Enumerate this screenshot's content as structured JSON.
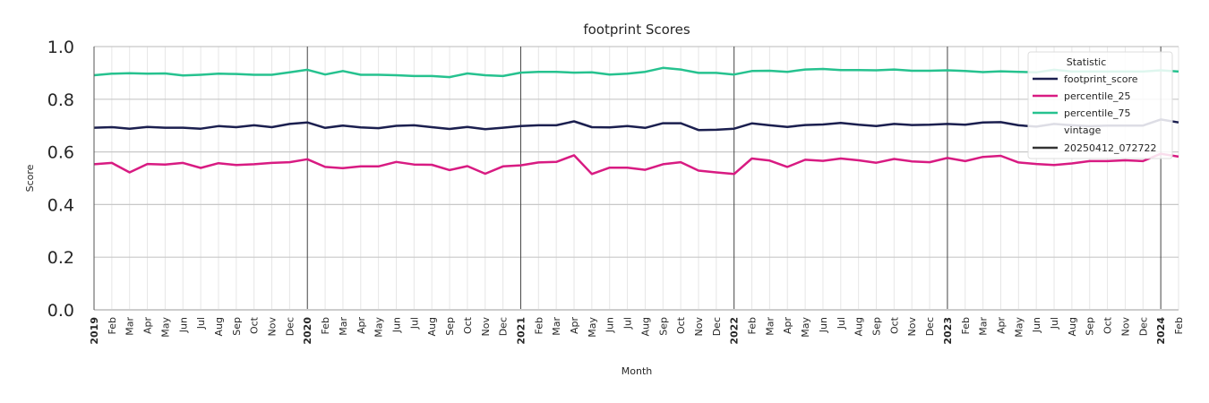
{
  "chart_data": {
    "type": "line",
    "title": "footprint Scores",
    "xlabel": "Month",
    "ylabel": "Score",
    "ylim": [
      0.0,
      1.0
    ],
    "yticks": [
      "0.0",
      "0.2",
      "0.4",
      "0.6",
      "0.8",
      "1.0"
    ],
    "x": [
      "2019",
      "Feb",
      "Mar",
      "Apr",
      "May",
      "Jun",
      "Jul",
      "Aug",
      "Sep",
      "Oct",
      "Nov",
      "Dec",
      "2020",
      "Feb",
      "Mar",
      "Apr",
      "May",
      "Jun",
      "Jul",
      "Aug",
      "Sep",
      "Oct",
      "Nov",
      "Dec",
      "2021",
      "Feb",
      "Mar",
      "Apr",
      "May",
      "Jun",
      "Jul",
      "Aug",
      "Sep",
      "Oct",
      "Nov",
      "Dec",
      "2022",
      "Feb",
      "Mar",
      "Apr",
      "May",
      "Jun",
      "Jul",
      "Aug",
      "Sep",
      "Oct",
      "Nov",
      "Dec",
      "2023",
      "Feb",
      "Mar",
      "Apr",
      "May",
      "Jun",
      "Jul",
      "Aug",
      "Sep",
      "Oct",
      "Nov",
      "Dec",
      "2024",
      "Feb"
    ],
    "year_ticks": [
      "2019",
      "2020",
      "2021",
      "2022",
      "2023",
      "2024"
    ],
    "grid": true,
    "legend_position": "top-right",
    "legend": {
      "title": "Statistic",
      "vintage_title": "vintage",
      "vintage_entry": "20250412_072722"
    },
    "series": [
      {
        "name": "footprint_score",
        "color": "#1b1f4f",
        "values": [
          0.692,
          0.694,
          0.688,
          0.695,
          0.692,
          0.692,
          0.688,
          0.698,
          0.694,
          0.701,
          0.694,
          0.706,
          0.712,
          0.691,
          0.7,
          0.693,
          0.69,
          0.699,
          0.701,
          0.694,
          0.687,
          0.695,
          0.686,
          0.692,
          0.698,
          0.701,
          0.701,
          0.716,
          0.694,
          0.693,
          0.698,
          0.691,
          0.709,
          0.709,
          0.683,
          0.684,
          0.688,
          0.708,
          0.701,
          0.695,
          0.702,
          0.704,
          0.71,
          0.703,
          0.698,
          0.706,
          0.702,
          0.703,
          0.706,
          0.703,
          0.712,
          0.713,
          0.701,
          0.696,
          0.706,
          0.701,
          0.698,
          0.7,
          0.7,
          0.7,
          0.723,
          0.712
        ]
      },
      {
        "name": "percentile_25",
        "color": "#d81b82",
        "values": [
          0.553,
          0.558,
          0.522,
          0.554,
          0.552,
          0.558,
          0.539,
          0.557,
          0.55,
          0.553,
          0.558,
          0.561,
          0.572,
          0.543,
          0.538,
          0.545,
          0.545,
          0.562,
          0.552,
          0.551,
          0.531,
          0.546,
          0.517,
          0.545,
          0.549,
          0.56,
          0.562,
          0.587,
          0.516,
          0.54,
          0.54,
          0.532,
          0.553,
          0.561,
          0.529,
          0.522,
          0.516,
          0.575,
          0.567,
          0.543,
          0.57,
          0.566,
          0.575,
          0.568,
          0.559,
          0.573,
          0.564,
          0.561,
          0.577,
          0.565,
          0.581,
          0.585,
          0.56,
          0.554,
          0.55,
          0.556,
          0.565,
          0.565,
          0.568,
          0.565,
          0.593,
          0.582
        ]
      },
      {
        "name": "percentile_75",
        "color": "#26c28f",
        "values": [
          0.891,
          0.897,
          0.899,
          0.897,
          0.898,
          0.89,
          0.893,
          0.897,
          0.896,
          0.893,
          0.893,
          0.902,
          0.912,
          0.894,
          0.907,
          0.893,
          0.893,
          0.891,
          0.888,
          0.888,
          0.884,
          0.898,
          0.891,
          0.888,
          0.901,
          0.904,
          0.904,
          0.901,
          0.902,
          0.894,
          0.897,
          0.904,
          0.919,
          0.913,
          0.9,
          0.9,
          0.894,
          0.907,
          0.908,
          0.904,
          0.913,
          0.915,
          0.911,
          0.911,
          0.91,
          0.913,
          0.908,
          0.908,
          0.91,
          0.907,
          0.903,
          0.906,
          0.904,
          0.902,
          0.912,
          0.905,
          0.905,
          0.905,
          0.905,
          0.905,
          0.91,
          0.905
        ]
      }
    ]
  }
}
